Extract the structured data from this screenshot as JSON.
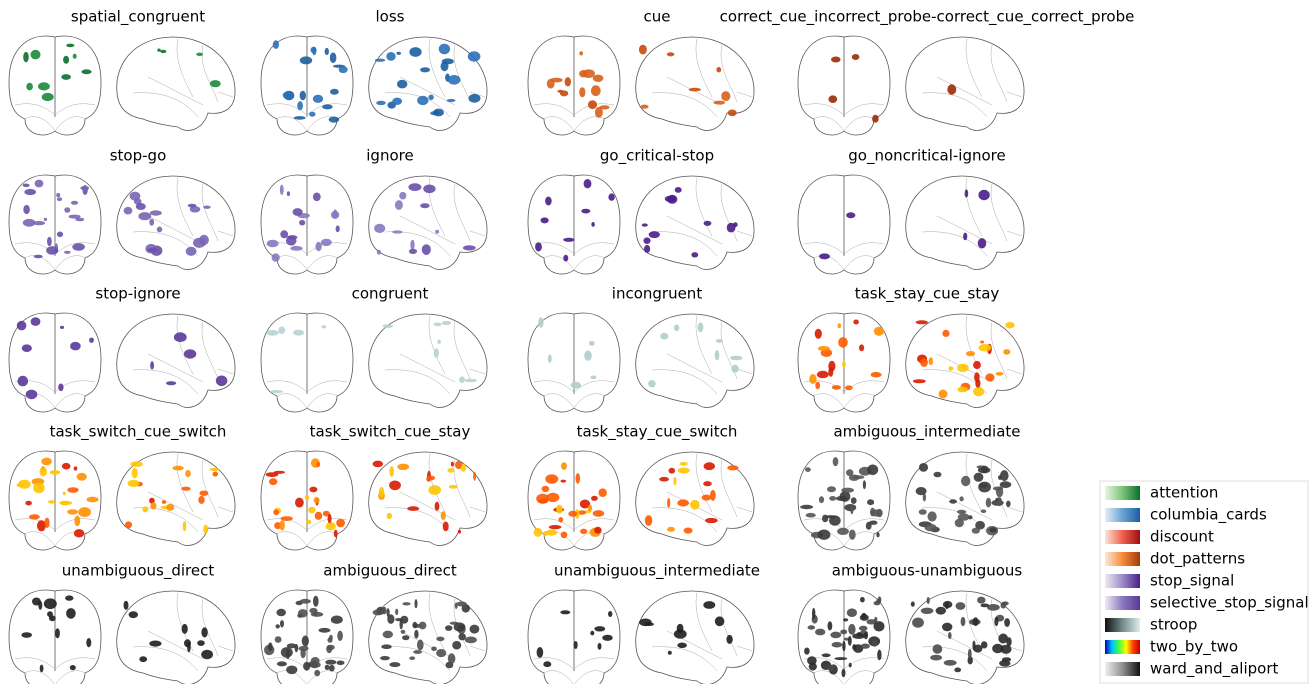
{
  "panels": [
    {
      "title": "spatial_congruent",
      "colors": [
        "#0b6e2c",
        "#1a8a3a"
      ]
    },
    {
      "title": "loss",
      "colors": [
        "#1c5ea0",
        "#2a70b8"
      ]
    },
    {
      "title": "cue",
      "colors": [
        "#c84a0c",
        "#d8601a"
      ]
    },
    {
      "title": "correct_cue_incorrect_probe-correct_cue_correct_probe",
      "colors": [
        "#9a2a08"
      ]
    },
    {
      "title": "stop-go",
      "colors": [
        "#6a50a8",
        "#7a64b4"
      ]
    },
    {
      "title": "ignore",
      "colors": [
        "#6a50a8",
        "#8a78c0"
      ]
    },
    {
      "title": "go_critical-stop",
      "colors": [
        "#4a1c88"
      ]
    },
    {
      "title": "go_noncritical-ignore",
      "colors": [
        "#4a1c88"
      ]
    },
    {
      "title": "stop-ignore",
      "colors": [
        "#5a3898"
      ]
    },
    {
      "title": "congruent",
      "colors": [
        "#b8d2d2"
      ]
    },
    {
      "title": "incongruent",
      "colors": [
        "#b0cccc"
      ]
    },
    {
      "title": "task_stay_cue_stay",
      "colors": [
        "#ffc400",
        "#ff9000",
        "#ff5a00",
        "#d81a00"
      ]
    },
    {
      "title": "task_switch_cue_switch",
      "colors": [
        "#ffc400",
        "#ff9000",
        "#ff5a00",
        "#d81a00"
      ]
    },
    {
      "title": "task_switch_cue_stay",
      "colors": [
        "#ffc400",
        "#ff9000",
        "#ff5a00",
        "#d81a00"
      ]
    },
    {
      "title": "task_stay_cue_switch",
      "colors": [
        "#ffc400",
        "#ff9000",
        "#ff5a00",
        "#d81a00"
      ]
    },
    {
      "title": "ambiguous_intermediate",
      "colors": [
        "#3a3a3a",
        "#555555"
      ]
    },
    {
      "title": "unambiguous_direct",
      "colors": [
        "#1e1e1e"
      ]
    },
    {
      "title": "ambiguous_direct",
      "colors": [
        "#3a3a3a",
        "#505050"
      ]
    },
    {
      "title": "unambiguous_intermediate",
      "colors": [
        "#1e1e1e"
      ]
    },
    {
      "title": "ambiguous-unambiguous",
      "colors": [
        "#2a2a2a",
        "#4a4a4a"
      ]
    }
  ],
  "legend": [
    {
      "name": "attention",
      "colors": [
        "#e8f5e4",
        "#7cc47a",
        "#0b6e2c"
      ]
    },
    {
      "name": "columbia_cards",
      "colors": [
        "#e4eef8",
        "#6aa2d2",
        "#1c5ea0"
      ]
    },
    {
      "name": "discount",
      "colors": [
        "#fde4d8",
        "#f0604a",
        "#a00e14"
      ]
    },
    {
      "name": "dot_patterns",
      "colors": [
        "#fde8d4",
        "#f48c3a",
        "#a8380a"
      ]
    },
    {
      "name": "stop_signal",
      "colors": [
        "#eeeaf4",
        "#9a8cc6",
        "#4a1c88"
      ]
    },
    {
      "name": "selective_stop_signal",
      "colors": [
        "#eeeaf4",
        "#8a78c0",
        "#5a3898"
      ]
    },
    {
      "name": "stroop",
      "colors": [
        "#101010",
        "#708c8c",
        "#e0ecec"
      ]
    },
    {
      "name": "two_by_two",
      "colors": [
        "#0000c0",
        "#00c0ff",
        "#40ff40",
        "#ffff00",
        "#ff4000",
        "#c00000"
      ]
    },
    {
      "name": "ward_and_aliport",
      "colors": [
        "#f0f0f0",
        "#909090",
        "#101010"
      ]
    }
  ]
}
